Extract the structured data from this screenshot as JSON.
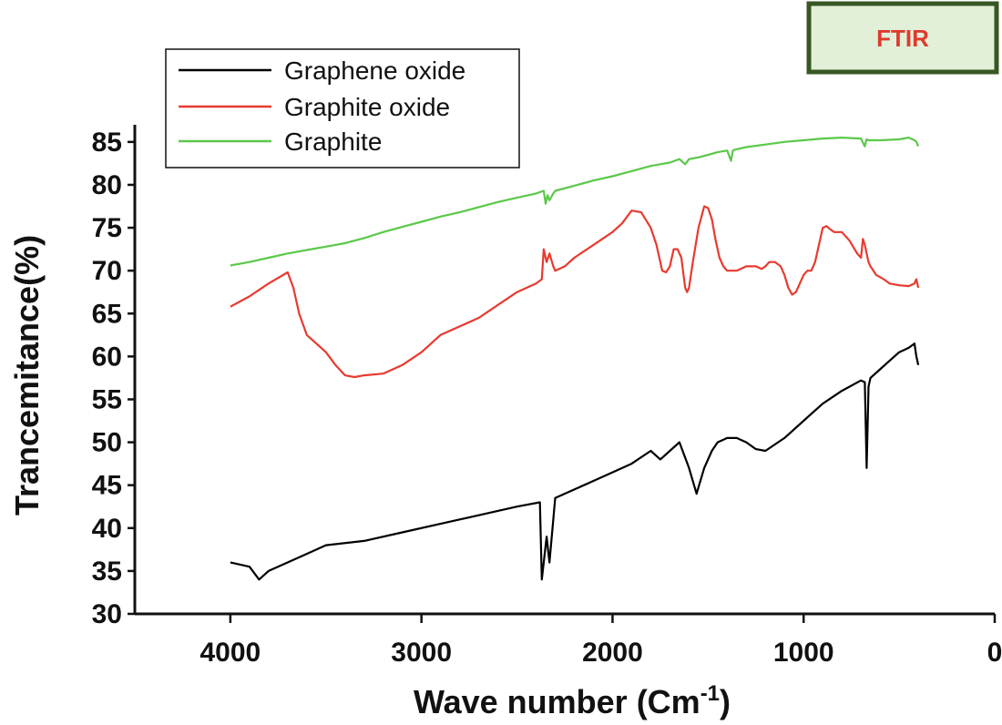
{
  "badge": {
    "label": "FTIR",
    "background": "#e2f0d9",
    "border": "#385723",
    "text_color": "#e03a2e"
  },
  "chart_data": {
    "type": "line",
    "xlabel": "Wave number (Cm",
    "xlabel_sup": "-1",
    "xlabel_end": ")",
    "ylabel": "Trancemitance(%)",
    "xlim": [
      4500,
      0
    ],
    "ylim": [
      30,
      87
    ],
    "x_ticks": [
      4000,
      3000,
      2000,
      1000,
      0
    ],
    "x_tick_labels": [
      "4000",
      "3000",
      "2000",
      "1000",
      "0"
    ],
    "y_ticks": [
      30,
      35,
      40,
      45,
      50,
      55,
      60,
      65,
      70,
      75,
      80,
      85
    ],
    "y_tick_labels": [
      "30",
      "35",
      "40",
      "45",
      "50",
      "55",
      "60",
      "65",
      "70",
      "75",
      "80",
      "85"
    ],
    "legend_position": "top-left",
    "series": [
      {
        "name": "Graphene oxide",
        "color": "#000000",
        "x": [
          4000,
          3900,
          3850,
          3800,
          3700,
          3600,
          3500,
          3300,
          3100,
          2900,
          2700,
          2500,
          2380,
          2370,
          2345,
          2330,
          2310,
          2300,
          2200,
          2100,
          2000,
          1900,
          1800,
          1750,
          1700,
          1650,
          1600,
          1560,
          1520,
          1480,
          1450,
          1400,
          1350,
          1300,
          1250,
          1200,
          1100,
          1000,
          900,
          800,
          700,
          680,
          670,
          660,
          650,
          600,
          550,
          500,
          450,
          420,
          410,
          400
        ],
        "y": [
          36,
          35.5,
          34,
          35,
          36,
          37,
          38,
          38.5,
          39.5,
          40.5,
          41.5,
          42.5,
          43,
          34,
          39,
          36,
          41,
          43.5,
          44.5,
          45.5,
          46.5,
          47.5,
          49,
          48,
          49,
          50,
          47,
          44,
          47,
          49,
          50,
          50.5,
          50.5,
          50,
          49.2,
          49,
          50.5,
          52.5,
          54.5,
          56,
          57.2,
          57,
          47,
          56.5,
          57.5,
          58.5,
          59.5,
          60.5,
          61,
          61.5,
          60,
          59
        ]
      },
      {
        "name": "Graphite oxide",
        "color": "#e83a2f",
        "x": [
          4000,
          3900,
          3800,
          3700,
          3670,
          3640,
          3600,
          3550,
          3500,
          3450,
          3400,
          3350,
          3300,
          3200,
          3100,
          3000,
          2900,
          2800,
          2700,
          2600,
          2500,
          2400,
          2370,
          2360,
          2345,
          2330,
          2310,
          2300,
          2250,
          2200,
          2100,
          2000,
          1950,
          1900,
          1850,
          1800,
          1770,
          1740,
          1720,
          1700,
          1680,
          1660,
          1640,
          1620,
          1610,
          1600,
          1580,
          1550,
          1520,
          1500,
          1480,
          1460,
          1440,
          1420,
          1400,
          1350,
          1300,
          1250,
          1220,
          1200,
          1180,
          1150,
          1120,
          1100,
          1080,
          1060,
          1040,
          1020,
          1000,
          980,
          960,
          940,
          920,
          900,
          880,
          860,
          840,
          800,
          760,
          720,
          700,
          690,
          680,
          670,
          660,
          650,
          620,
          580,
          550,
          500,
          450,
          420,
          410,
          400
        ],
        "y": [
          65.8,
          67,
          68.5,
          69.8,
          68,
          65,
          62.5,
          61.5,
          60.5,
          59,
          57.8,
          57.6,
          57.8,
          58,
          59,
          60.5,
          62.5,
          63.5,
          64.5,
          66,
          67.5,
          68.5,
          69,
          72.5,
          71,
          72,
          70.5,
          70,
          70.5,
          71.5,
          73,
          74.5,
          75.5,
          77,
          76.8,
          75,
          73,
          70,
          69.8,
          70.5,
          72.5,
          72.5,
          71.5,
          68,
          67.5,
          68,
          71,
          75,
          77.5,
          77.3,
          76,
          73.5,
          71.5,
          70.5,
          70,
          70,
          70.5,
          70.5,
          70.2,
          70.5,
          71,
          71,
          70.5,
          69.5,
          68,
          67.2,
          67.5,
          68.5,
          69.5,
          70,
          70,
          71,
          73,
          75,
          75.2,
          74.8,
          74.5,
          74.5,
          73.5,
          72,
          71.5,
          73.7,
          73,
          72,
          71,
          70.5,
          69.5,
          69,
          68.5,
          68.3,
          68.2,
          68.5,
          69,
          68
        ]
      },
      {
        "name": "Graphite",
        "color": "#5bc84a",
        "x": [
          4000,
          3900,
          3800,
          3700,
          3600,
          3500,
          3400,
          3300,
          3200,
          3100,
          3000,
          2900,
          2800,
          2700,
          2600,
          2500,
          2400,
          2360,
          2350,
          2340,
          2330,
          2310,
          2300,
          2200,
          2100,
          2000,
          1900,
          1800,
          1750,
          1700,
          1650,
          1620,
          1600,
          1550,
          1500,
          1450,
          1400,
          1380,
          1370,
          1360,
          1300,
          1200,
          1100,
          1000,
          900,
          800,
          700,
          680,
          670,
          660,
          600,
          500,
          450,
          420,
          410,
          400
        ],
        "y": [
          70.6,
          71,
          71.5,
          72,
          72.4,
          72.8,
          73.2,
          73.8,
          74.5,
          75.1,
          75.7,
          76.3,
          76.8,
          77.4,
          78,
          78.5,
          79,
          79.3,
          77.8,
          78.8,
          78.2,
          79,
          79.3,
          79.9,
          80.5,
          81,
          81.6,
          82.2,
          82.4,
          82.6,
          83,
          82.4,
          83,
          83.2,
          83.5,
          83.8,
          84,
          82.8,
          84,
          84.1,
          84.4,
          84.7,
          85,
          85.2,
          85.4,
          85.5,
          85.4,
          84.5,
          85.3,
          85.2,
          85.2,
          85.3,
          85.5,
          85.2,
          85,
          84.5
        ]
      }
    ]
  }
}
